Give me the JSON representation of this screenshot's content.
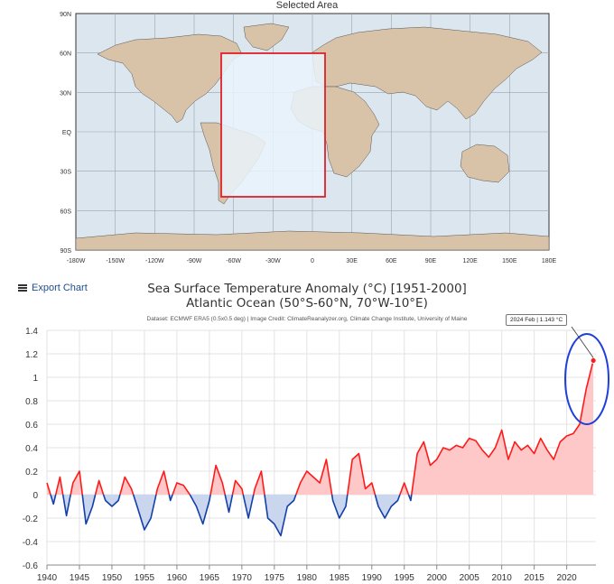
{
  "map": {
    "title": "Selected Area",
    "lat_labels": [
      "90N",
      "60N",
      "30N",
      "EQ",
      "30S",
      "60S",
      "90S"
    ],
    "lon_labels": [
      "-180W",
      "-150W",
      "-120W",
      "-90W",
      "-60W",
      "-30W",
      "0",
      "30E",
      "60E",
      "90E",
      "120E",
      "150E",
      "180E"
    ],
    "selected_region": {
      "lon": [
        -70,
        10
      ],
      "lat": [
        -50,
        60
      ]
    },
    "colors": {
      "ocean": "#dce6ee",
      "land": "#d8c2a8",
      "selection_fill": "#eaf3fb",
      "selection_border": "#e0202a"
    }
  },
  "toolbar": {
    "export_label": "Export Chart"
  },
  "chart": {
    "title_line1": "Sea Surface Temperature Anomaly (°C) [1951-2000]",
    "title_line2": "Atlantic Ocean (50°S-60°N, 70°W-10°E)",
    "credit": "Dataset: ECMWF ERA5 (0.5x0.5 deg) | Image Credit: ClimateReanalyzer.org, Climate Change Institute, University of Maine",
    "tooltip": "2024 Feb | 1.143 °C",
    "colors": {
      "positive_line": "#ff1a1a",
      "positive_fill": "#ffc8c8",
      "negative_line": "#1340a8",
      "negative_fill": "#c9d6ee",
      "highlight_circle": "#1f3fdd"
    }
  },
  "chart_data": {
    "type": "area",
    "title": "Sea Surface Temperature Anomaly (°C) [1951-2000]",
    "subtitle": "Atlantic Ocean (50°S-60°N, 70°W-10°E)",
    "xlabel": "",
    "ylabel": "",
    "xlim": [
      1940,
      2024.5
    ],
    "ylim": [
      -0.6,
      1.4
    ],
    "y_ticks": [
      -0.6,
      -0.4,
      -0.2,
      0,
      0.2,
      0.4,
      0.6,
      0.8,
      1,
      1.2,
      1.4
    ],
    "y_tick_labels": [
      "-0.6",
      "-0.4",
      "-0.2",
      "0",
      "0.2",
      "0.4",
      "0.6",
      "0.8",
      "1",
      "1.2",
      "1.4"
    ],
    "x_ticks": [
      1940,
      1945,
      1950,
      1955,
      1960,
      1965,
      1970,
      1975,
      1980,
      1985,
      1990,
      1995,
      2000,
      2005,
      2010,
      2015,
      2020
    ],
    "x_tick_labels": [
      "1940",
      "1945",
      "1950",
      "1955",
      "1960",
      "1965",
      "1970",
      "1975",
      "1980",
      "1985",
      "1990",
      "1995",
      "2000",
      "2005",
      "2010",
      "2015",
      "2020"
    ],
    "grid": true,
    "series": [
      {
        "x_years": [
          1940,
          1941,
          1942,
          1943,
          1944,
          1945,
          1946,
          1947,
          1948,
          1949,
          1950,
          1951,
          1952,
          1953,
          1954,
          1955,
          1956,
          1957,
          1958,
          1959,
          1960,
          1961,
          1962,
          1963,
          1964,
          1965,
          1966,
          1967,
          1968,
          1969,
          1970,
          1971,
          1972,
          1973,
          1974,
          1975,
          1976,
          1977,
          1978,
          1979,
          1980,
          1981,
          1982,
          1983,
          1984,
          1985,
          1986,
          1987,
          1988,
          1989,
          1990,
          1991,
          1992,
          1993,
          1994,
          1995,
          1996,
          1997,
          1998,
          1999,
          2000,
          2001,
          2002,
          2003,
          2004,
          2005,
          2006,
          2007,
          2008,
          2009,
          2010,
          2011,
          2012,
          2013,
          2014,
          2015,
          2016,
          2017,
          2018,
          2019,
          2020,
          2021,
          2022,
          2023,
          2024.1
        ],
        "y_values": [
          0.1,
          -0.08,
          0.15,
          -0.18,
          0.1,
          0.2,
          -0.25,
          -0.1,
          0.12,
          -0.05,
          -0.1,
          -0.05,
          0.15,
          0.05,
          -0.12,
          -0.3,
          -0.2,
          0.05,
          0.2,
          -0.05,
          0.1,
          0.08,
          0.0,
          -0.1,
          -0.25,
          -0.05,
          0.25,
          0.1,
          -0.15,
          0.12,
          0.05,
          -0.2,
          0.05,
          0.2,
          -0.2,
          -0.25,
          -0.35,
          -0.1,
          -0.05,
          0.1,
          0.2,
          0.15,
          0.1,
          0.3,
          -0.05,
          -0.2,
          -0.1,
          0.3,
          0.35,
          0.05,
          0.1,
          -0.1,
          -0.2,
          -0.1,
          -0.05,
          0.1,
          -0.05,
          0.35,
          0.45,
          0.25,
          0.3,
          0.4,
          0.38,
          0.42,
          0.4,
          0.48,
          0.46,
          0.38,
          0.32,
          0.4,
          0.55,
          0.3,
          0.45,
          0.38,
          0.42,
          0.35,
          0.48,
          0.38,
          0.3,
          0.45,
          0.5,
          0.52,
          0.6,
          0.9,
          1.143
        ]
      }
    ]
  }
}
